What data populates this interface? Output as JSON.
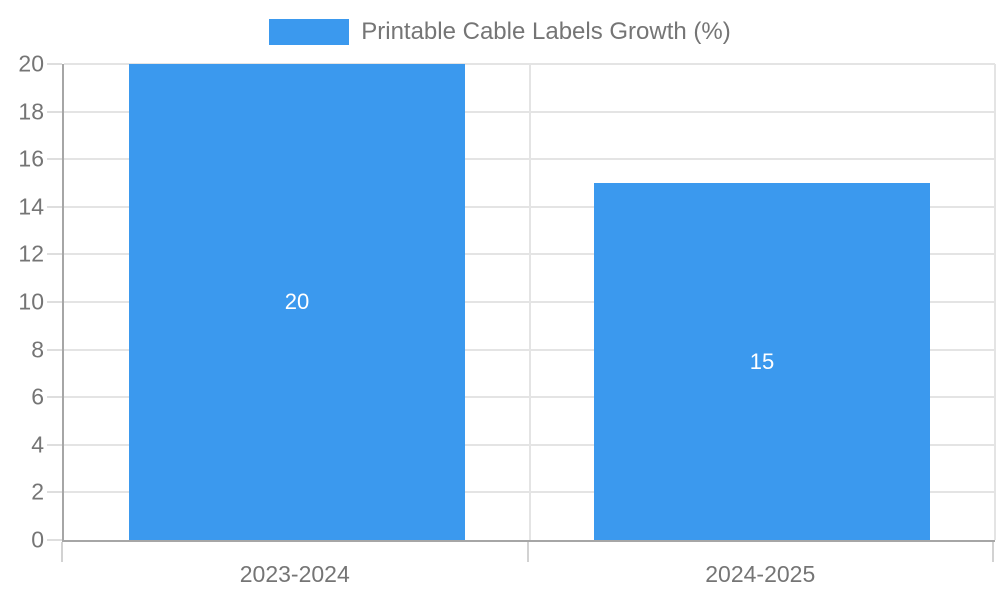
{
  "chart_data": {
    "type": "bar",
    "title": "Printable Cable Labels Growth (%)",
    "legend_label": "Printable Cable Labels Growth (%)",
    "legend_position": "top",
    "categories": [
      "2023-2024",
      "2024-2025"
    ],
    "values": [
      20,
      15
    ],
    "data_labels": [
      "20",
      "15"
    ],
    "xlabel": "",
    "ylabel": "",
    "ylim": [
      0,
      20
    ],
    "ytick_step": 2,
    "grid": true,
    "bar_color": "#3b99ee",
    "grid_color": "#e4e4e4",
    "axis_color": "#a6a6a6",
    "text_color": "#757575"
  }
}
